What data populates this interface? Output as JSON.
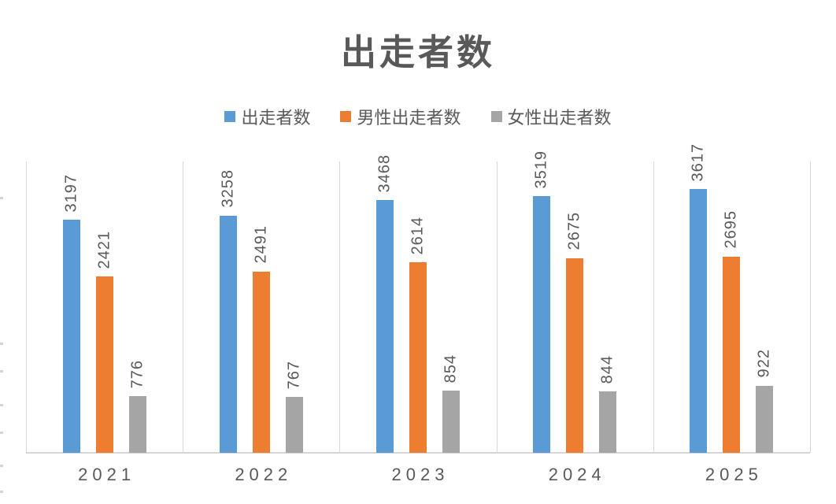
{
  "chart_data": {
    "type": "bar",
    "title": "出走者数",
    "categories": [
      "2021",
      "2022",
      "2023",
      "2024",
      "2025"
    ],
    "series": [
      {
        "name": "出走者数",
        "color": "#5B9BD5",
        "values": [
          3197,
          3258,
          3468,
          3519,
          3617
        ]
      },
      {
        "name": "男性出走者数",
        "color": "#ED7D31",
        "values": [
          2421,
          2491,
          2614,
          2675,
          2695
        ]
      },
      {
        "name": "女性出走者数",
        "color": "#A5A5A5",
        "values": [
          776,
          767,
          854,
          844,
          922
        ]
      }
    ],
    "xlabel": "",
    "ylabel": "",
    "ylim": [
      0,
      4000
    ],
    "grid": "vertical category separator lines only",
    "legend_position": "top",
    "data_labels": "values rotated 90 degrees above each bar",
    "text_color": "#595959",
    "gridline_color": "#D9D9D9"
  }
}
